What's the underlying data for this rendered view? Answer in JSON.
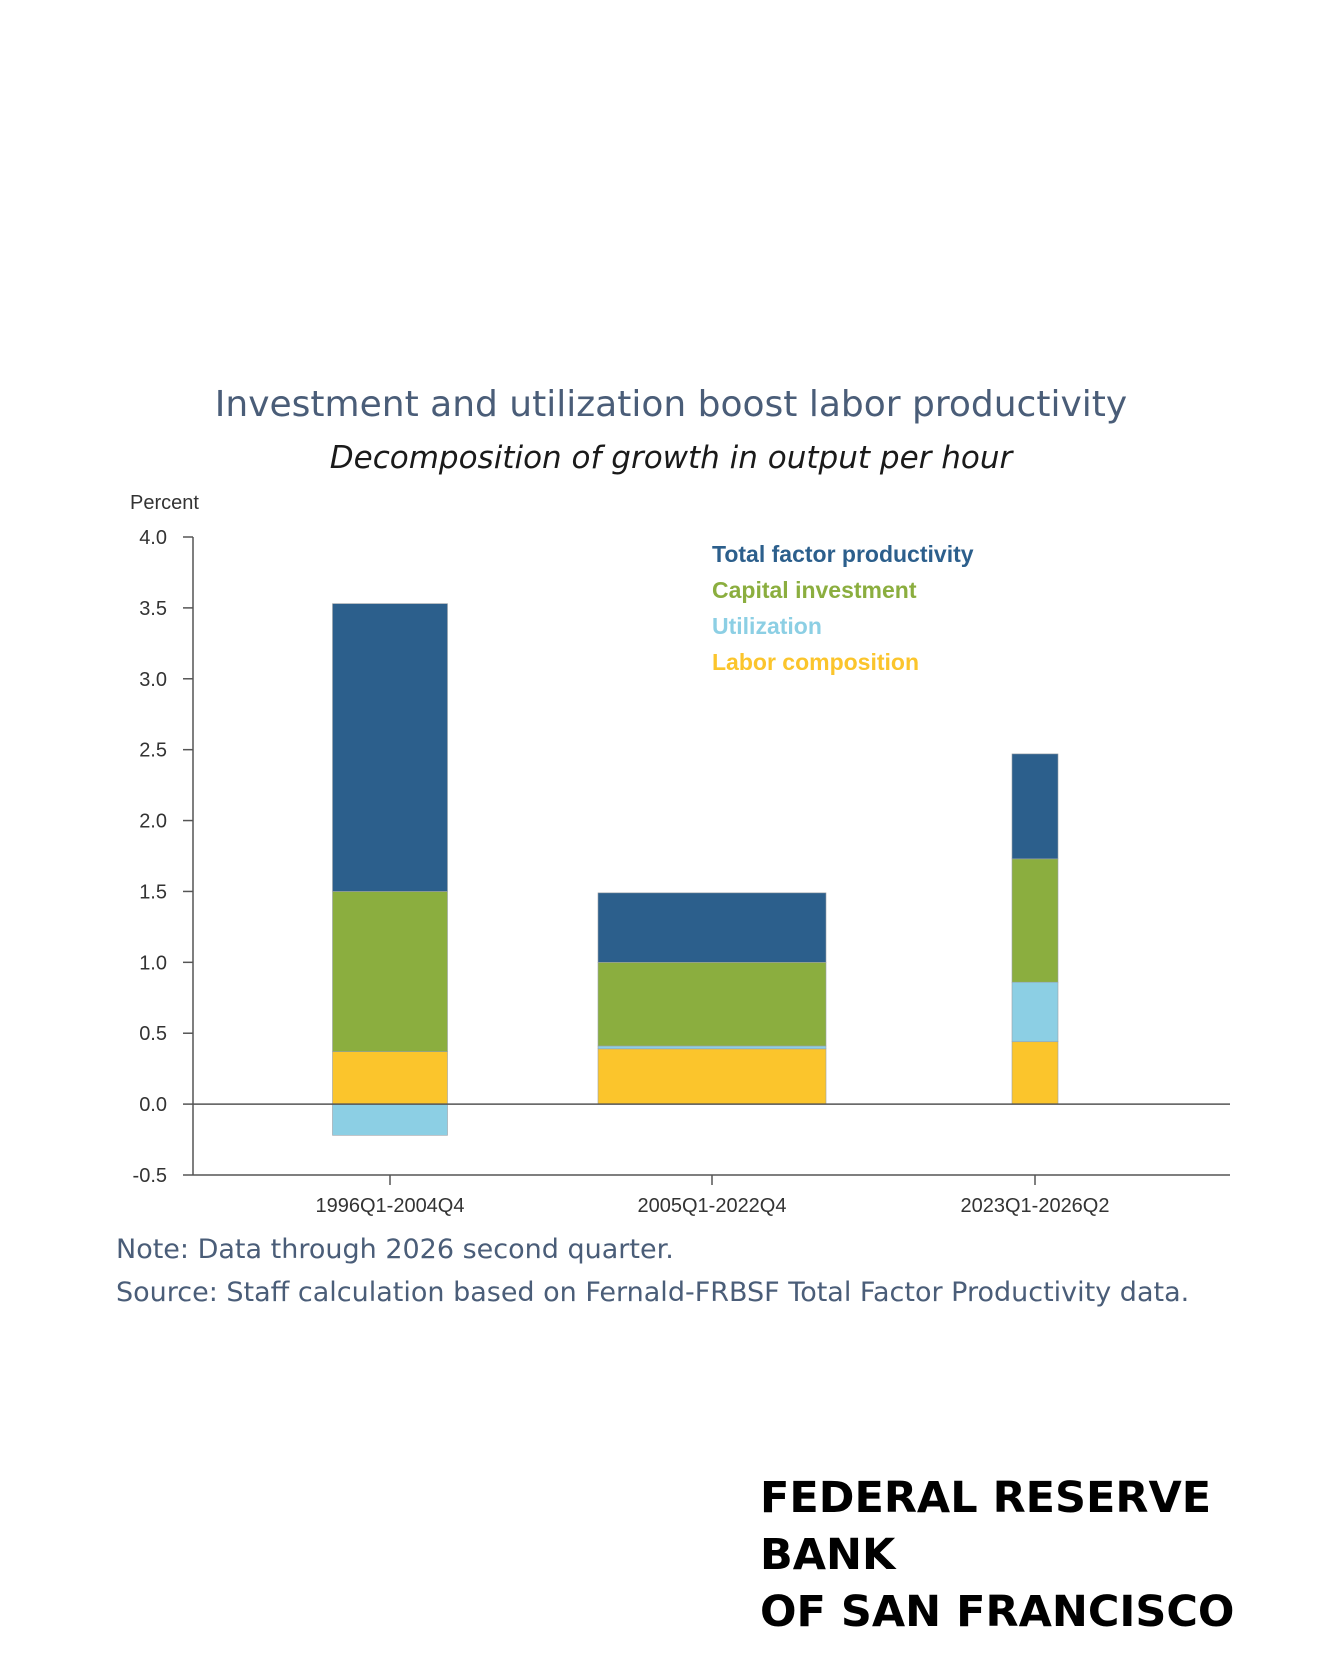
{
  "chart_data": {
    "type": "bar",
    "stacked": true,
    "title": "Investment and utilization boost labor productivity",
    "subtitle": "Decomposition of growth in output per hour",
    "ylabel": "Percent",
    "xlabel": "",
    "ylim": [
      -0.5,
      4.0
    ],
    "yticks": [
      "4.0",
      "3.5",
      "3.0",
      "2.5",
      "2.0",
      "1.5",
      "1.0",
      "0.5",
      "0.0",
      "-0.5"
    ],
    "ytick_values": [
      4.0,
      3.5,
      3.0,
      2.5,
      2.0,
      1.5,
      1.0,
      0.5,
      0.0,
      -0.5
    ],
    "categories": [
      "1996Q1-2004Q4",
      "2005Q1-2022Q4",
      "2023Q1-2026Q2"
    ],
    "series": [
      {
        "name": "Labor composition",
        "color": "#fbc52c",
        "values": [
          0.37,
          0.39,
          0.44
        ]
      },
      {
        "name": "Utilization",
        "color": "#8ccfe4",
        "values": [
          -0.22,
          0.02,
          0.42
        ]
      },
      {
        "name": "Capital investment",
        "color": "#8bae3f",
        "values": [
          1.13,
          0.59,
          0.87
        ]
      },
      {
        "name": "Total factor productivity",
        "color": "#2c5f8c",
        "values": [
          2.03,
          0.49,
          0.74
        ]
      }
    ],
    "legend_order": [
      "Total factor productivity",
      "Capital investment",
      "Utilization",
      "Labor composition"
    ],
    "legend_position": "top-right",
    "grid": false
  },
  "notes": {
    "note": "Note: Data through 2026 second quarter.",
    "source": "Source: Staff calculation based on Fernald-FRBSF Total Factor Productivity data."
  },
  "brand": {
    "line1": "FEDERAL RESERVE BANK",
    "line2": "OF SAN FRANCISCO"
  }
}
